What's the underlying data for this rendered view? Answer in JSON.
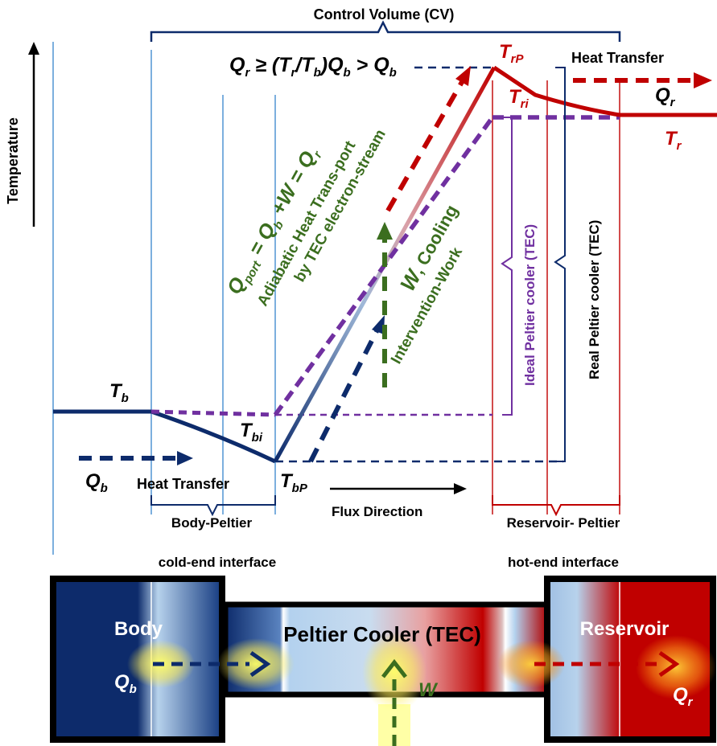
{
  "title": {
    "control_volume": "Control Volume (CV)",
    "y_axis": "Temperature"
  },
  "equations": {
    "main": {
      "q1": "Q",
      "q1_sub": "r",
      "rel1": " ≥ (",
      "t1": "T",
      "t1_sub": "r",
      "slash": "/",
      "t2": "T",
      "t2_sub": "b",
      "close": ")",
      "q2": "Q",
      "q2_sub": "b",
      "gt": " > ",
      "q3": "Q",
      "q3_sub": "b"
    },
    "port": {
      "q": "Q",
      "q_sub": "port",
      "eq1": " = ",
      "qb": "Q",
      "qb_sub": "b",
      "plus": " +",
      "w": "W",
      "eq2": " = ",
      "qr": "Q",
      "qr_sub": "r"
    }
  },
  "labels": {
    "adiabatic_1": "Adiabatic Heat Trans-port",
    "adiabatic_2": "by TEC electron-stream",
    "w_cooling_w": "W",
    "w_cooling_rest": ", Cooling",
    "intervention": "Intervention-Work",
    "heat_transfer_right": "Heat Transfer",
    "heat_transfer_left": "Heat Transfer",
    "flux_direction": "Flux Direction",
    "body_peltier": "Body-Peltier",
    "cold_end": "cold-end interface",
    "reservoir_peltier": "Reservoir- Peltier",
    "hot_end": "hot-end interface",
    "ideal_peltier": "Ideal Peltier cooler (TEC)",
    "real_peltier": "Real Peltier cooler (TEC)"
  },
  "temps": {
    "tb": "T",
    "tb_sub": "b",
    "tbi": "T",
    "tbi_sub": "bi",
    "tbp": "T",
    "tbp_sub": "bP",
    "trp": "T",
    "trp_sub": "rP",
    "tri": "T",
    "tri_sub": "ri",
    "tr": "T",
    "tr_sub": "r"
  },
  "heat": {
    "qb": "Q",
    "qb_sub": "b",
    "qr": "Q",
    "qr_sub": "r"
  },
  "blocks": {
    "body": "Body",
    "body_q": "Q",
    "body_q_sub": "b",
    "peltier": "Peltier Cooler (TEC)",
    "peltier_w": "W",
    "reservoir": "Reservoir",
    "reservoir_q": "Q",
    "reservoir_q_sub": "r"
  },
  "colors": {
    "navy": "#0d2b6b",
    "red": "#c00000",
    "purple": "#7030a0",
    "green": "#3b6e1f",
    "light_blue": "#5b9bd5",
    "box_red": "#c00000"
  }
}
